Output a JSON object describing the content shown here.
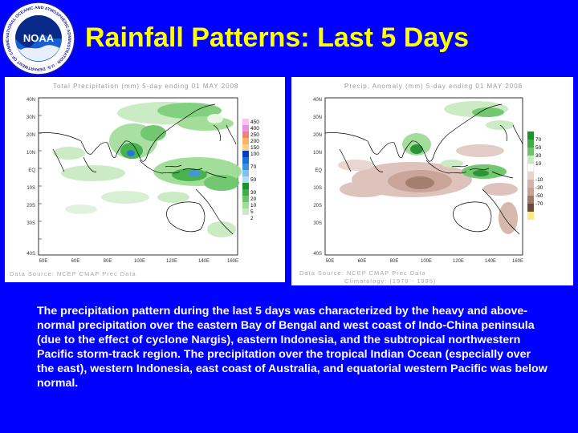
{
  "logo": {
    "ring_text": "NATIONAL OCEANIC AND ATMOSPHERIC ADMINISTRATION · U.S. DEPARTMENT OF COMMERCE",
    "center_text": "NOAA"
  },
  "title": "Rainfall Patterns: Last 5 Days",
  "left_map": {
    "title": "Total Precipitation (mm) 5-day ending 01 MAY 2008",
    "source": "Data Source: NCEP CMAP Prec Data",
    "lat_labels": [
      "40N",
      "30N",
      "20N",
      "10N",
      "EQ",
      "10S",
      "20S",
      "30S",
      "40S"
    ],
    "lon_labels": [
      "50E",
      "60E",
      "80E",
      "100E",
      "120E",
      "140E",
      "160E"
    ],
    "colorbar_labels": [
      "450",
      "400",
      "250",
      "200",
      "150",
      "100",
      "70",
      "50",
      "30",
      "20",
      "10",
      "5",
      "2"
    ]
  },
  "right_map": {
    "title": "Precip. Anomaly (mm) 5-day ending 01 MAY 2008",
    "source_line1": "Data Source: NCEP CMAP Prec Data",
    "source_line2": "Climatology: (1979 - 1995)",
    "lat_labels": [
      "40N",
      "30N",
      "20N",
      "10N",
      "EQ",
      "10S",
      "20S",
      "30S",
      "40S"
    ],
    "lon_labels": [
      "50E",
      "60E",
      "80E",
      "100E",
      "120E",
      "140E",
      "160E"
    ],
    "colorbar_labels": [
      "70",
      "50",
      "30",
      "10",
      "-10",
      "-30",
      "-50",
      "-70"
    ]
  },
  "caption": "The precipitation pattern during the last 5 days was characterized by the heavy and above-normal precipitation over the eastern Bay of Bengal and west coast of Indo-China peninsula (due to the effect of cyclone Nargis), eastern Indonesia, and the subtropical northwestern Pacific storm-track region. The precipitation over the tropical Indian Ocean (especially over the east), western Indonesia, east coast of Australia, and equatorial western Pacific was below normal.",
  "colors": {
    "background": "#0000ff",
    "title": "#ffff00",
    "caption": "#ffffff"
  }
}
